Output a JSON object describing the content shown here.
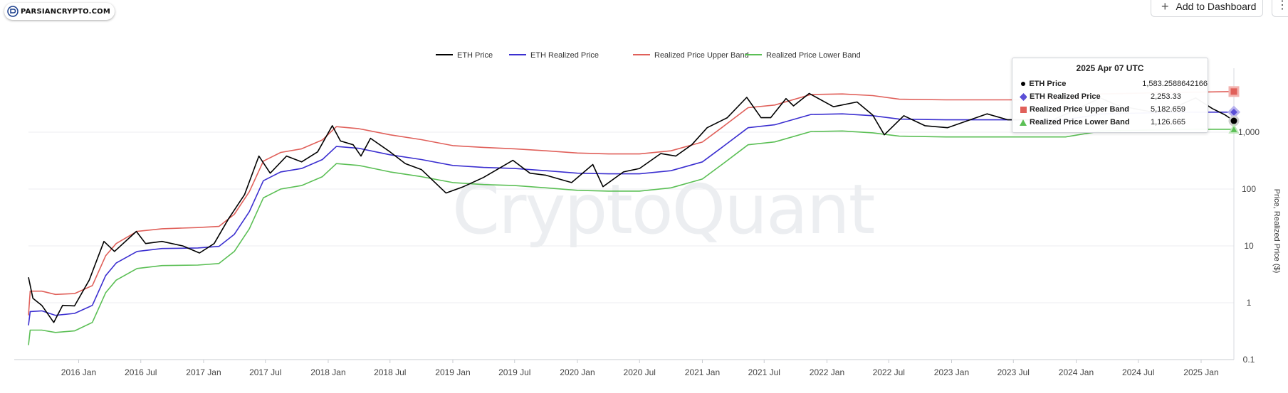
{
  "logo": {
    "text": "PARSIANCRYPTO.COM"
  },
  "toolbar": {
    "add_label": "Add to Dashboard",
    "more_icon": "⋮"
  },
  "watermark": "CryptoQuant",
  "tooltip": {
    "date": "2025 Apr 07 UTC",
    "rows": [
      {
        "name": "ETH Price",
        "value": "1,583.2588642166",
        "color": "#000000",
        "marker": "circle"
      },
      {
        "name": "ETH Realized Price",
        "value": "2,253.33",
        "color": "#5b4fd6",
        "marker": "diamond"
      },
      {
        "name": "Realized Price Upper Band",
        "value": "5,182.659",
        "color": "#e0605a",
        "marker": "square"
      },
      {
        "name": "Realized Price Lower Band",
        "value": "1,126.665",
        "color": "#5bbf55",
        "marker": "triangle"
      }
    ]
  },
  "chart_data": {
    "type": "line",
    "yscale": "log",
    "ylabel": "Price, Realized Price ($)",
    "ylim": [
      0.1,
      10000
    ],
    "y_ticks": [
      {
        "value": 0.1,
        "label": "0.1"
      },
      {
        "value": 1,
        "label": "1"
      },
      {
        "value": 10,
        "label": "10"
      },
      {
        "value": 100,
        "label": "100"
      },
      {
        "value": 1000,
        "label": "1,000"
      }
    ],
    "x_start": "2015-08-07",
    "x_end": "2025-04-07",
    "x_ticks": [
      {
        "date": "2016-01-01",
        "label": "2016 Jan"
      },
      {
        "date": "2016-07-01",
        "label": "2016 Jul"
      },
      {
        "date": "2017-01-01",
        "label": "2017 Jan"
      },
      {
        "date": "2017-07-01",
        "label": "2017 Jul"
      },
      {
        "date": "2018-01-01",
        "label": "2018 Jan"
      },
      {
        "date": "2018-07-01",
        "label": "2018 Jul"
      },
      {
        "date": "2019-01-01",
        "label": "2019 Jan"
      },
      {
        "date": "2019-07-01",
        "label": "2019 Jul"
      },
      {
        "date": "2020-01-01",
        "label": "2020 Jan"
      },
      {
        "date": "2020-07-01",
        "label": "2020 Jul"
      },
      {
        "date": "2021-01-01",
        "label": "2021 Jan"
      },
      {
        "date": "2021-07-01",
        "label": "2021 Jul"
      },
      {
        "date": "2022-01-01",
        "label": "2022 Jan"
      },
      {
        "date": "2022-07-01",
        "label": "2022 Jul"
      },
      {
        "date": "2023-01-01",
        "label": "2023 Jan"
      },
      {
        "date": "2023-07-01",
        "label": "2023 Jul"
      },
      {
        "date": "2024-01-01",
        "label": "2024 Jan"
      },
      {
        "date": "2024-07-01",
        "label": "2024 Jul"
      },
      {
        "date": "2025-01-01",
        "label": "2025 Jan"
      }
    ],
    "legend_position": "top-center",
    "grid": true,
    "series": [
      {
        "name": "ETH Price",
        "color": "#000000",
        "points": [
          [
            "2015-08-07",
            2.8
          ],
          [
            "2015-08-20",
            1.2
          ],
          [
            "2015-09-15",
            0.9
          ],
          [
            "2015-10-20",
            0.45
          ],
          [
            "2015-11-15",
            0.9
          ],
          [
            "2015-12-20",
            0.88
          ],
          [
            "2016-02-01",
            2.5
          ],
          [
            "2016-03-15",
            12
          ],
          [
            "2016-04-15",
            8
          ],
          [
            "2016-06-18",
            18
          ],
          [
            "2016-07-15",
            11
          ],
          [
            "2016-09-01",
            12
          ],
          [
            "2016-11-01",
            10
          ],
          [
            "2016-12-20",
            7.5
          ],
          [
            "2017-02-01",
            11
          ],
          [
            "2017-03-15",
            30
          ],
          [
            "2017-05-01",
            80
          ],
          [
            "2017-06-12",
            380
          ],
          [
            "2017-07-15",
            190
          ],
          [
            "2017-09-01",
            380
          ],
          [
            "2017-10-15",
            300
          ],
          [
            "2017-12-01",
            450
          ],
          [
            "2018-01-13",
            1300
          ],
          [
            "2018-02-06",
            700
          ],
          [
            "2018-03-15",
            600
          ],
          [
            "2018-04-07",
            380
          ],
          [
            "2018-05-05",
            780
          ],
          [
            "2018-07-01",
            450
          ],
          [
            "2018-08-15",
            280
          ],
          [
            "2018-10-01",
            220
          ],
          [
            "2018-12-12",
            85
          ],
          [
            "2019-02-01",
            110
          ],
          [
            "2019-04-01",
            160
          ],
          [
            "2019-06-26",
            320
          ],
          [
            "2019-08-15",
            190
          ],
          [
            "2019-10-01",
            175
          ],
          [
            "2019-12-15",
            130
          ],
          [
            "2020-02-15",
            270
          ],
          [
            "2020-03-16",
            110
          ],
          [
            "2020-05-15",
            200
          ],
          [
            "2020-07-01",
            230
          ],
          [
            "2020-09-01",
            420
          ],
          [
            "2020-10-15",
            380
          ],
          [
            "2020-12-01",
            600
          ],
          [
            "2021-01-15",
            1200
          ],
          [
            "2021-03-15",
            1800
          ],
          [
            "2021-05-11",
            4100
          ],
          [
            "2021-06-22",
            1800
          ],
          [
            "2021-07-20",
            1800
          ],
          [
            "2021-09-03",
            3900
          ],
          [
            "2021-09-25",
            2900
          ],
          [
            "2021-11-10",
            4800
          ],
          [
            "2022-01-20",
            2800
          ],
          [
            "2022-03-30",
            3400
          ],
          [
            "2022-05-15",
            2000
          ],
          [
            "2022-06-18",
            900
          ],
          [
            "2022-08-14",
            1950
          ],
          [
            "2022-10-15",
            1300
          ],
          [
            "2022-12-20",
            1200
          ],
          [
            "2023-04-15",
            2100
          ],
          [
            "2023-06-15",
            1650
          ],
          [
            "2023-08-15",
            1650
          ],
          [
            "2023-10-15",
            1550
          ],
          [
            "2023-12-15",
            2250
          ],
          [
            "2024-03-12",
            4000
          ],
          [
            "2024-05-01",
            2950
          ],
          [
            "2024-08-05",
            2300
          ],
          [
            "2024-10-01",
            2500
          ],
          [
            "2024-12-16",
            4000
          ],
          [
            "2025-02-03",
            2600
          ],
          [
            "2025-03-10",
            2050
          ],
          [
            "2025-04-07",
            1583
          ]
        ]
      },
      {
        "name": "ETH Realized Price",
        "color": "#3b2fd0",
        "points": [
          [
            "2015-08-07",
            0.4
          ],
          [
            "2015-08-12",
            0.7
          ],
          [
            "2015-09-15",
            0.72
          ],
          [
            "2015-10-25",
            0.6
          ],
          [
            "2015-12-20",
            0.65
          ],
          [
            "2016-02-10",
            0.9
          ],
          [
            "2016-03-20",
            3.0
          ],
          [
            "2016-04-20",
            5.0
          ],
          [
            "2016-06-20",
            8.0
          ],
          [
            "2016-09-01",
            9.0
          ],
          [
            "2016-12-15",
            9.2
          ],
          [
            "2017-02-15",
            9.8
          ],
          [
            "2017-04-01",
            16
          ],
          [
            "2017-05-15",
            40
          ],
          [
            "2017-06-25",
            140
          ],
          [
            "2017-08-15",
            200
          ],
          [
            "2017-10-15",
            230
          ],
          [
            "2017-12-15",
            330
          ],
          [
            "2018-01-25",
            560
          ],
          [
            "2018-04-01",
            520
          ],
          [
            "2018-07-01",
            400
          ],
          [
            "2018-10-01",
            330
          ],
          [
            "2019-01-01",
            260
          ],
          [
            "2019-04-01",
            240
          ],
          [
            "2019-07-01",
            230
          ],
          [
            "2019-10-01",
            210
          ],
          [
            "2020-01-01",
            190
          ],
          [
            "2020-04-01",
            185
          ],
          [
            "2020-07-01",
            185
          ],
          [
            "2020-10-01",
            210
          ],
          [
            "2021-01-01",
            300
          ],
          [
            "2021-03-01",
            550
          ],
          [
            "2021-05-15",
            1200
          ],
          [
            "2021-08-01",
            1350
          ],
          [
            "2021-11-15",
            2050
          ],
          [
            "2022-02-15",
            2100
          ],
          [
            "2022-05-15",
            1950
          ],
          [
            "2022-08-01",
            1700
          ],
          [
            "2022-12-15",
            1650
          ],
          [
            "2023-06-01",
            1650
          ],
          [
            "2023-12-01",
            1650
          ],
          [
            "2024-03-15",
            2100
          ],
          [
            "2024-09-01",
            2200
          ],
          [
            "2024-12-15",
            2250
          ],
          [
            "2025-04-07",
            2253.33
          ]
        ]
      },
      {
        "name": "Realized Price Upper Band",
        "color": "#e0605a",
        "points": [
          [
            "2015-08-07",
            0.6
          ],
          [
            "2015-08-12",
            1.6
          ],
          [
            "2015-09-15",
            1.6
          ],
          [
            "2015-10-25",
            1.4
          ],
          [
            "2015-12-20",
            1.45
          ],
          [
            "2016-02-10",
            2.0
          ],
          [
            "2016-03-20",
            6.7
          ],
          [
            "2016-04-20",
            11
          ],
          [
            "2016-06-20",
            18
          ],
          [
            "2016-09-01",
            20
          ],
          [
            "2016-12-15",
            21
          ],
          [
            "2017-02-15",
            22
          ],
          [
            "2017-04-01",
            36
          ],
          [
            "2017-05-15",
            90
          ],
          [
            "2017-06-25",
            310
          ],
          [
            "2017-08-15",
            440
          ],
          [
            "2017-10-15",
            510
          ],
          [
            "2017-12-15",
            730
          ],
          [
            "2018-01-25",
            1250
          ],
          [
            "2018-04-01",
            1150
          ],
          [
            "2018-07-01",
            900
          ],
          [
            "2018-10-01",
            740
          ],
          [
            "2019-01-01",
            580
          ],
          [
            "2019-04-01",
            540
          ],
          [
            "2019-07-01",
            510
          ],
          [
            "2019-10-01",
            470
          ],
          [
            "2020-01-01",
            430
          ],
          [
            "2020-04-01",
            415
          ],
          [
            "2020-07-01",
            415
          ],
          [
            "2020-10-01",
            470
          ],
          [
            "2021-01-01",
            670
          ],
          [
            "2021-03-01",
            1230
          ],
          [
            "2021-05-15",
            2700
          ],
          [
            "2021-08-01",
            3000
          ],
          [
            "2021-11-15",
            4600
          ],
          [
            "2022-02-15",
            4700
          ],
          [
            "2022-05-15",
            4400
          ],
          [
            "2022-08-01",
            3800
          ],
          [
            "2022-12-15",
            3700
          ],
          [
            "2023-06-01",
            3700
          ],
          [
            "2023-12-01",
            3700
          ],
          [
            "2024-03-15",
            4700
          ],
          [
            "2024-09-01",
            4950
          ],
          [
            "2024-12-15",
            5050
          ],
          [
            "2025-04-07",
            5182.659
          ]
        ]
      },
      {
        "name": "Realized Price Lower Band",
        "color": "#5bbf55",
        "points": [
          [
            "2015-08-07",
            0.18
          ],
          [
            "2015-08-12",
            0.33
          ],
          [
            "2015-09-15",
            0.33
          ],
          [
            "2015-10-25",
            0.3
          ],
          [
            "2015-12-20",
            0.32
          ],
          [
            "2016-02-10",
            0.45
          ],
          [
            "2016-03-20",
            1.5
          ],
          [
            "2016-04-20",
            2.5
          ],
          [
            "2016-06-20",
            4.0
          ],
          [
            "2016-09-01",
            4.5
          ],
          [
            "2016-12-15",
            4.6
          ],
          [
            "2017-02-15",
            4.9
          ],
          [
            "2017-04-01",
            8
          ],
          [
            "2017-05-15",
            20
          ],
          [
            "2017-06-25",
            70
          ],
          [
            "2017-08-15",
            100
          ],
          [
            "2017-10-15",
            115
          ],
          [
            "2017-12-15",
            165
          ],
          [
            "2018-01-25",
            280
          ],
          [
            "2018-04-01",
            260
          ],
          [
            "2018-07-01",
            200
          ],
          [
            "2018-10-01",
            165
          ],
          [
            "2019-01-01",
            130
          ],
          [
            "2019-04-01",
            120
          ],
          [
            "2019-07-01",
            115
          ],
          [
            "2019-10-01",
            105
          ],
          [
            "2020-01-01",
            95
          ],
          [
            "2020-04-01",
            92
          ],
          [
            "2020-07-01",
            92
          ],
          [
            "2020-10-01",
            105
          ],
          [
            "2021-01-01",
            150
          ],
          [
            "2021-03-01",
            275
          ],
          [
            "2021-05-15",
            600
          ],
          [
            "2021-08-01",
            675
          ],
          [
            "2021-11-15",
            1025
          ],
          [
            "2022-02-15",
            1050
          ],
          [
            "2022-05-15",
            975
          ],
          [
            "2022-08-01",
            850
          ],
          [
            "2022-12-15",
            825
          ],
          [
            "2023-06-01",
            825
          ],
          [
            "2023-12-01",
            825
          ],
          [
            "2024-03-15",
            1050
          ],
          [
            "2024-09-01",
            1100
          ],
          [
            "2024-12-15",
            1125
          ],
          [
            "2025-04-07",
            1126.665
          ]
        ]
      }
    ]
  }
}
